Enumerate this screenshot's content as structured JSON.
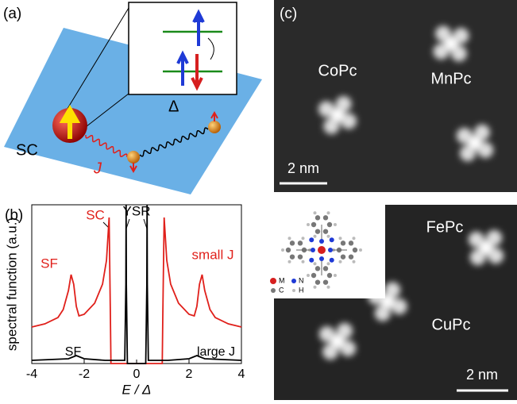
{
  "panel_a": {
    "label": "(a)",
    "substrate": "SC",
    "coupling": "J",
    "gap": "Δ"
  },
  "chart_data": {
    "type": "line",
    "panel": "(b)",
    "xlabel": "E / Δ",
    "ylabel": "spectral function (a.u.)",
    "xlim": [
      -4,
      4
    ],
    "ylim": [
      0,
      1
    ],
    "xticks": [
      -4,
      -2,
      0,
      2,
      4
    ],
    "annotations": {
      "sc": "SC",
      "ysr": "YSR",
      "sf_red": "SF",
      "sf_black": "SF"
    },
    "series": [
      {
        "name": "small J",
        "color": "#e0201b",
        "x": [
          -4,
          -3.5,
          -3,
          -2.8,
          -2.6,
          -2.5,
          -2.4,
          -2.3,
          -2.2,
          -2.0,
          -1.6,
          -1.3,
          -1.15,
          -1.05,
          -1.0,
          -0.98,
          0.98,
          1.0,
          1.05,
          1.15,
          1.3,
          1.6,
          2.0,
          2.2,
          2.3,
          2.4,
          2.5,
          2.6,
          2.8,
          3,
          3.5,
          4
        ],
        "values": [
          0.23,
          0.25,
          0.29,
          0.34,
          0.46,
          0.56,
          0.5,
          0.36,
          0.3,
          0.31,
          0.38,
          0.5,
          0.65,
          0.92,
          0.3,
          0,
          0,
          0.3,
          0.92,
          0.65,
          0.5,
          0.38,
          0.31,
          0.3,
          0.36,
          0.5,
          0.56,
          0.46,
          0.34,
          0.29,
          0.25,
          0.23
        ]
      },
      {
        "name": "large J",
        "color": "#000000",
        "x": [
          -4,
          -2.6,
          -2.3,
          -2.0,
          -1.2,
          -0.45,
          -0.41,
          -0.4,
          -0.39,
          -0.35,
          0.35,
          0.39,
          0.4,
          0.41,
          0.45,
          1.2,
          2.0,
          2.3,
          2.6,
          4
        ],
        "values": [
          0.02,
          0.03,
          0.05,
          0.03,
          0.02,
          0.02,
          0.5,
          1.0,
          0.5,
          0,
          0,
          0.5,
          1.0,
          0.5,
          0.02,
          0.02,
          0.03,
          0.05,
          0.03,
          0.02
        ]
      }
    ]
  },
  "panel_c": {
    "label": "(c)",
    "top": {
      "molecules": [
        "CoPc",
        "MnPc"
      ],
      "scale": "2 nm"
    },
    "bottom": {
      "molecules": [
        "FePc",
        "CuPc"
      ],
      "scale": "2 nm",
      "legend": [
        "M",
        "N",
        "C",
        "H"
      ]
    }
  }
}
